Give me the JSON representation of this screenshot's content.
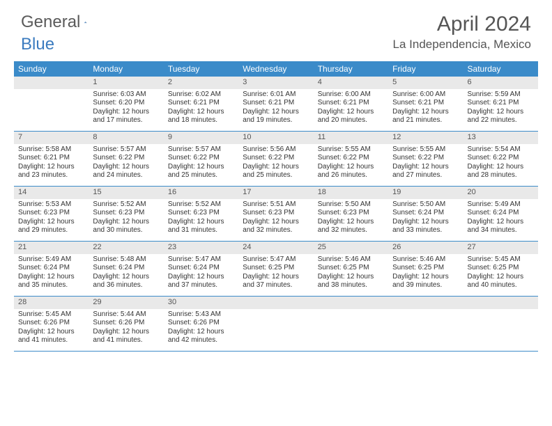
{
  "brand": {
    "part1": "General",
    "part2": "Blue"
  },
  "title": "April 2024",
  "location": "La Independencia, Mexico",
  "colors": {
    "header_bg": "#3b8bc9",
    "header_text": "#ffffff",
    "daynum_bg": "#e9e9e9",
    "text": "#333333",
    "border": "#3b8bc9",
    "brand_gray": "#5a5a5a",
    "brand_blue": "#3b7bbf"
  },
  "dow": [
    "Sunday",
    "Monday",
    "Tuesday",
    "Wednesday",
    "Thursday",
    "Friday",
    "Saturday"
  ],
  "weeks": [
    [
      {
        "n": "",
        "sr": "",
        "ss": "",
        "dl": ""
      },
      {
        "n": "1",
        "sr": "6:03 AM",
        "ss": "6:20 PM",
        "dl": "12 hours and 17 minutes."
      },
      {
        "n": "2",
        "sr": "6:02 AM",
        "ss": "6:21 PM",
        "dl": "12 hours and 18 minutes."
      },
      {
        "n": "3",
        "sr": "6:01 AM",
        "ss": "6:21 PM",
        "dl": "12 hours and 19 minutes."
      },
      {
        "n": "4",
        "sr": "6:00 AM",
        "ss": "6:21 PM",
        "dl": "12 hours and 20 minutes."
      },
      {
        "n": "5",
        "sr": "6:00 AM",
        "ss": "6:21 PM",
        "dl": "12 hours and 21 minutes."
      },
      {
        "n": "6",
        "sr": "5:59 AM",
        "ss": "6:21 PM",
        "dl": "12 hours and 22 minutes."
      }
    ],
    [
      {
        "n": "7",
        "sr": "5:58 AM",
        "ss": "6:21 PM",
        "dl": "12 hours and 23 minutes."
      },
      {
        "n": "8",
        "sr": "5:57 AM",
        "ss": "6:22 PM",
        "dl": "12 hours and 24 minutes."
      },
      {
        "n": "9",
        "sr": "5:57 AM",
        "ss": "6:22 PM",
        "dl": "12 hours and 25 minutes."
      },
      {
        "n": "10",
        "sr": "5:56 AM",
        "ss": "6:22 PM",
        "dl": "12 hours and 25 minutes."
      },
      {
        "n": "11",
        "sr": "5:55 AM",
        "ss": "6:22 PM",
        "dl": "12 hours and 26 minutes."
      },
      {
        "n": "12",
        "sr": "5:55 AM",
        "ss": "6:22 PM",
        "dl": "12 hours and 27 minutes."
      },
      {
        "n": "13",
        "sr": "5:54 AM",
        "ss": "6:22 PM",
        "dl": "12 hours and 28 minutes."
      }
    ],
    [
      {
        "n": "14",
        "sr": "5:53 AM",
        "ss": "6:23 PM",
        "dl": "12 hours and 29 minutes."
      },
      {
        "n": "15",
        "sr": "5:52 AM",
        "ss": "6:23 PM",
        "dl": "12 hours and 30 minutes."
      },
      {
        "n": "16",
        "sr": "5:52 AM",
        "ss": "6:23 PM",
        "dl": "12 hours and 31 minutes."
      },
      {
        "n": "17",
        "sr": "5:51 AM",
        "ss": "6:23 PM",
        "dl": "12 hours and 32 minutes."
      },
      {
        "n": "18",
        "sr": "5:50 AM",
        "ss": "6:23 PM",
        "dl": "12 hours and 32 minutes."
      },
      {
        "n": "19",
        "sr": "5:50 AM",
        "ss": "6:24 PM",
        "dl": "12 hours and 33 minutes."
      },
      {
        "n": "20",
        "sr": "5:49 AM",
        "ss": "6:24 PM",
        "dl": "12 hours and 34 minutes."
      }
    ],
    [
      {
        "n": "21",
        "sr": "5:49 AM",
        "ss": "6:24 PM",
        "dl": "12 hours and 35 minutes."
      },
      {
        "n": "22",
        "sr": "5:48 AM",
        "ss": "6:24 PM",
        "dl": "12 hours and 36 minutes."
      },
      {
        "n": "23",
        "sr": "5:47 AM",
        "ss": "6:24 PM",
        "dl": "12 hours and 37 minutes."
      },
      {
        "n": "24",
        "sr": "5:47 AM",
        "ss": "6:25 PM",
        "dl": "12 hours and 37 minutes."
      },
      {
        "n": "25",
        "sr": "5:46 AM",
        "ss": "6:25 PM",
        "dl": "12 hours and 38 minutes."
      },
      {
        "n": "26",
        "sr": "5:46 AM",
        "ss": "6:25 PM",
        "dl": "12 hours and 39 minutes."
      },
      {
        "n": "27",
        "sr": "5:45 AM",
        "ss": "6:25 PM",
        "dl": "12 hours and 40 minutes."
      }
    ],
    [
      {
        "n": "28",
        "sr": "5:45 AM",
        "ss": "6:26 PM",
        "dl": "12 hours and 41 minutes."
      },
      {
        "n": "29",
        "sr": "5:44 AM",
        "ss": "6:26 PM",
        "dl": "12 hours and 41 minutes."
      },
      {
        "n": "30",
        "sr": "5:43 AM",
        "ss": "6:26 PM",
        "dl": "12 hours and 42 minutes."
      },
      {
        "n": "",
        "sr": "",
        "ss": "",
        "dl": ""
      },
      {
        "n": "",
        "sr": "",
        "ss": "",
        "dl": ""
      },
      {
        "n": "",
        "sr": "",
        "ss": "",
        "dl": ""
      },
      {
        "n": "",
        "sr": "",
        "ss": "",
        "dl": ""
      }
    ]
  ],
  "labels": {
    "sunrise": "Sunrise:",
    "sunset": "Sunset:",
    "daylight": "Daylight:"
  }
}
